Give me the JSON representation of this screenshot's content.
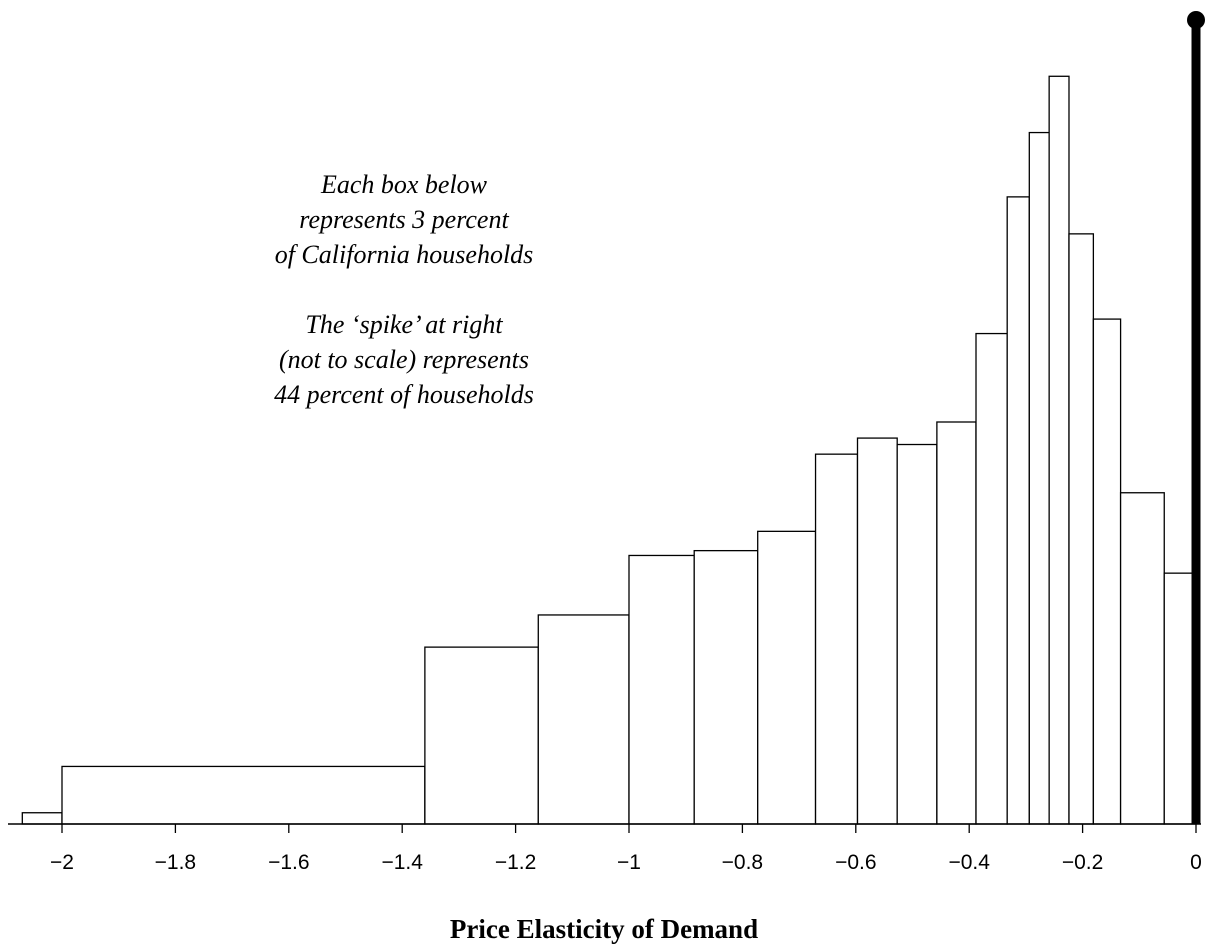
{
  "chart_data": {
    "type": "bar",
    "xlabel": "Price Elasticity of Demand",
    "annotation_lines": [
      "Each box below",
      "represents 3 percent",
      "of California households",
      "",
      "The ‘spike’ at right",
      "(not to scale) represents",
      "44 percent of households"
    ],
    "xlim": [
      -2.07,
      0.005
    ],
    "x_ticks": [
      -2,
      -1.8,
      -1.6,
      -1.4,
      -1.2,
      -1,
      -0.8,
      -0.6,
      -0.4,
      -0.2,
      0
    ],
    "x_tick_labels": [
      "−2",
      "−1.8",
      "−1.6",
      "−1.4",
      "−1.2",
      "−1",
      "−0.8",
      "−0.6",
      "−0.4",
      "−0.2",
      "0"
    ],
    "bars": [
      {
        "x0": -2.07,
        "x1": -2.0,
        "height": 0.7
      },
      {
        "x0": -2.0,
        "x1": -1.36,
        "height": 3.58
      },
      {
        "x0": -1.36,
        "x1": -1.16,
        "height": 11.0
      },
      {
        "x0": -1.16,
        "x1": -1.0,
        "height": 13.0
      },
      {
        "x0": -1.0,
        "x1": -0.885,
        "height": 16.7
      },
      {
        "x0": -0.885,
        "x1": -0.773,
        "height": 17.0
      },
      {
        "x0": -0.773,
        "x1": -0.671,
        "height": 18.2
      },
      {
        "x0": -0.671,
        "x1": -0.597,
        "height": 23.0
      },
      {
        "x0": -0.597,
        "x1": -0.527,
        "height": 24.0
      },
      {
        "x0": -0.527,
        "x1": -0.457,
        "height": 23.6
      },
      {
        "x0": -0.457,
        "x1": -0.388,
        "height": 25.0
      },
      {
        "x0": -0.388,
        "x1": -0.333,
        "height": 30.5
      },
      {
        "x0": -0.333,
        "x1": -0.294,
        "height": 39.0
      },
      {
        "x0": -0.294,
        "x1": -0.259,
        "height": 43.0
      },
      {
        "x0": -0.259,
        "x1": -0.224,
        "height": 46.5
      },
      {
        "x0": -0.224,
        "x1": -0.181,
        "height": 36.7
      },
      {
        "x0": -0.181,
        "x1": -0.133,
        "height": 31.4
      },
      {
        "x0": -0.133,
        "x1": -0.056,
        "height": 20.6
      },
      {
        "x0": -0.056,
        "x1": 0.0,
        "height": 15.6
      }
    ],
    "spike": {
      "x": 0,
      "percent": 44,
      "to_scale": false
    },
    "ylim": [
      0,
      50
    ],
    "grid": false,
    "legend": "none"
  }
}
